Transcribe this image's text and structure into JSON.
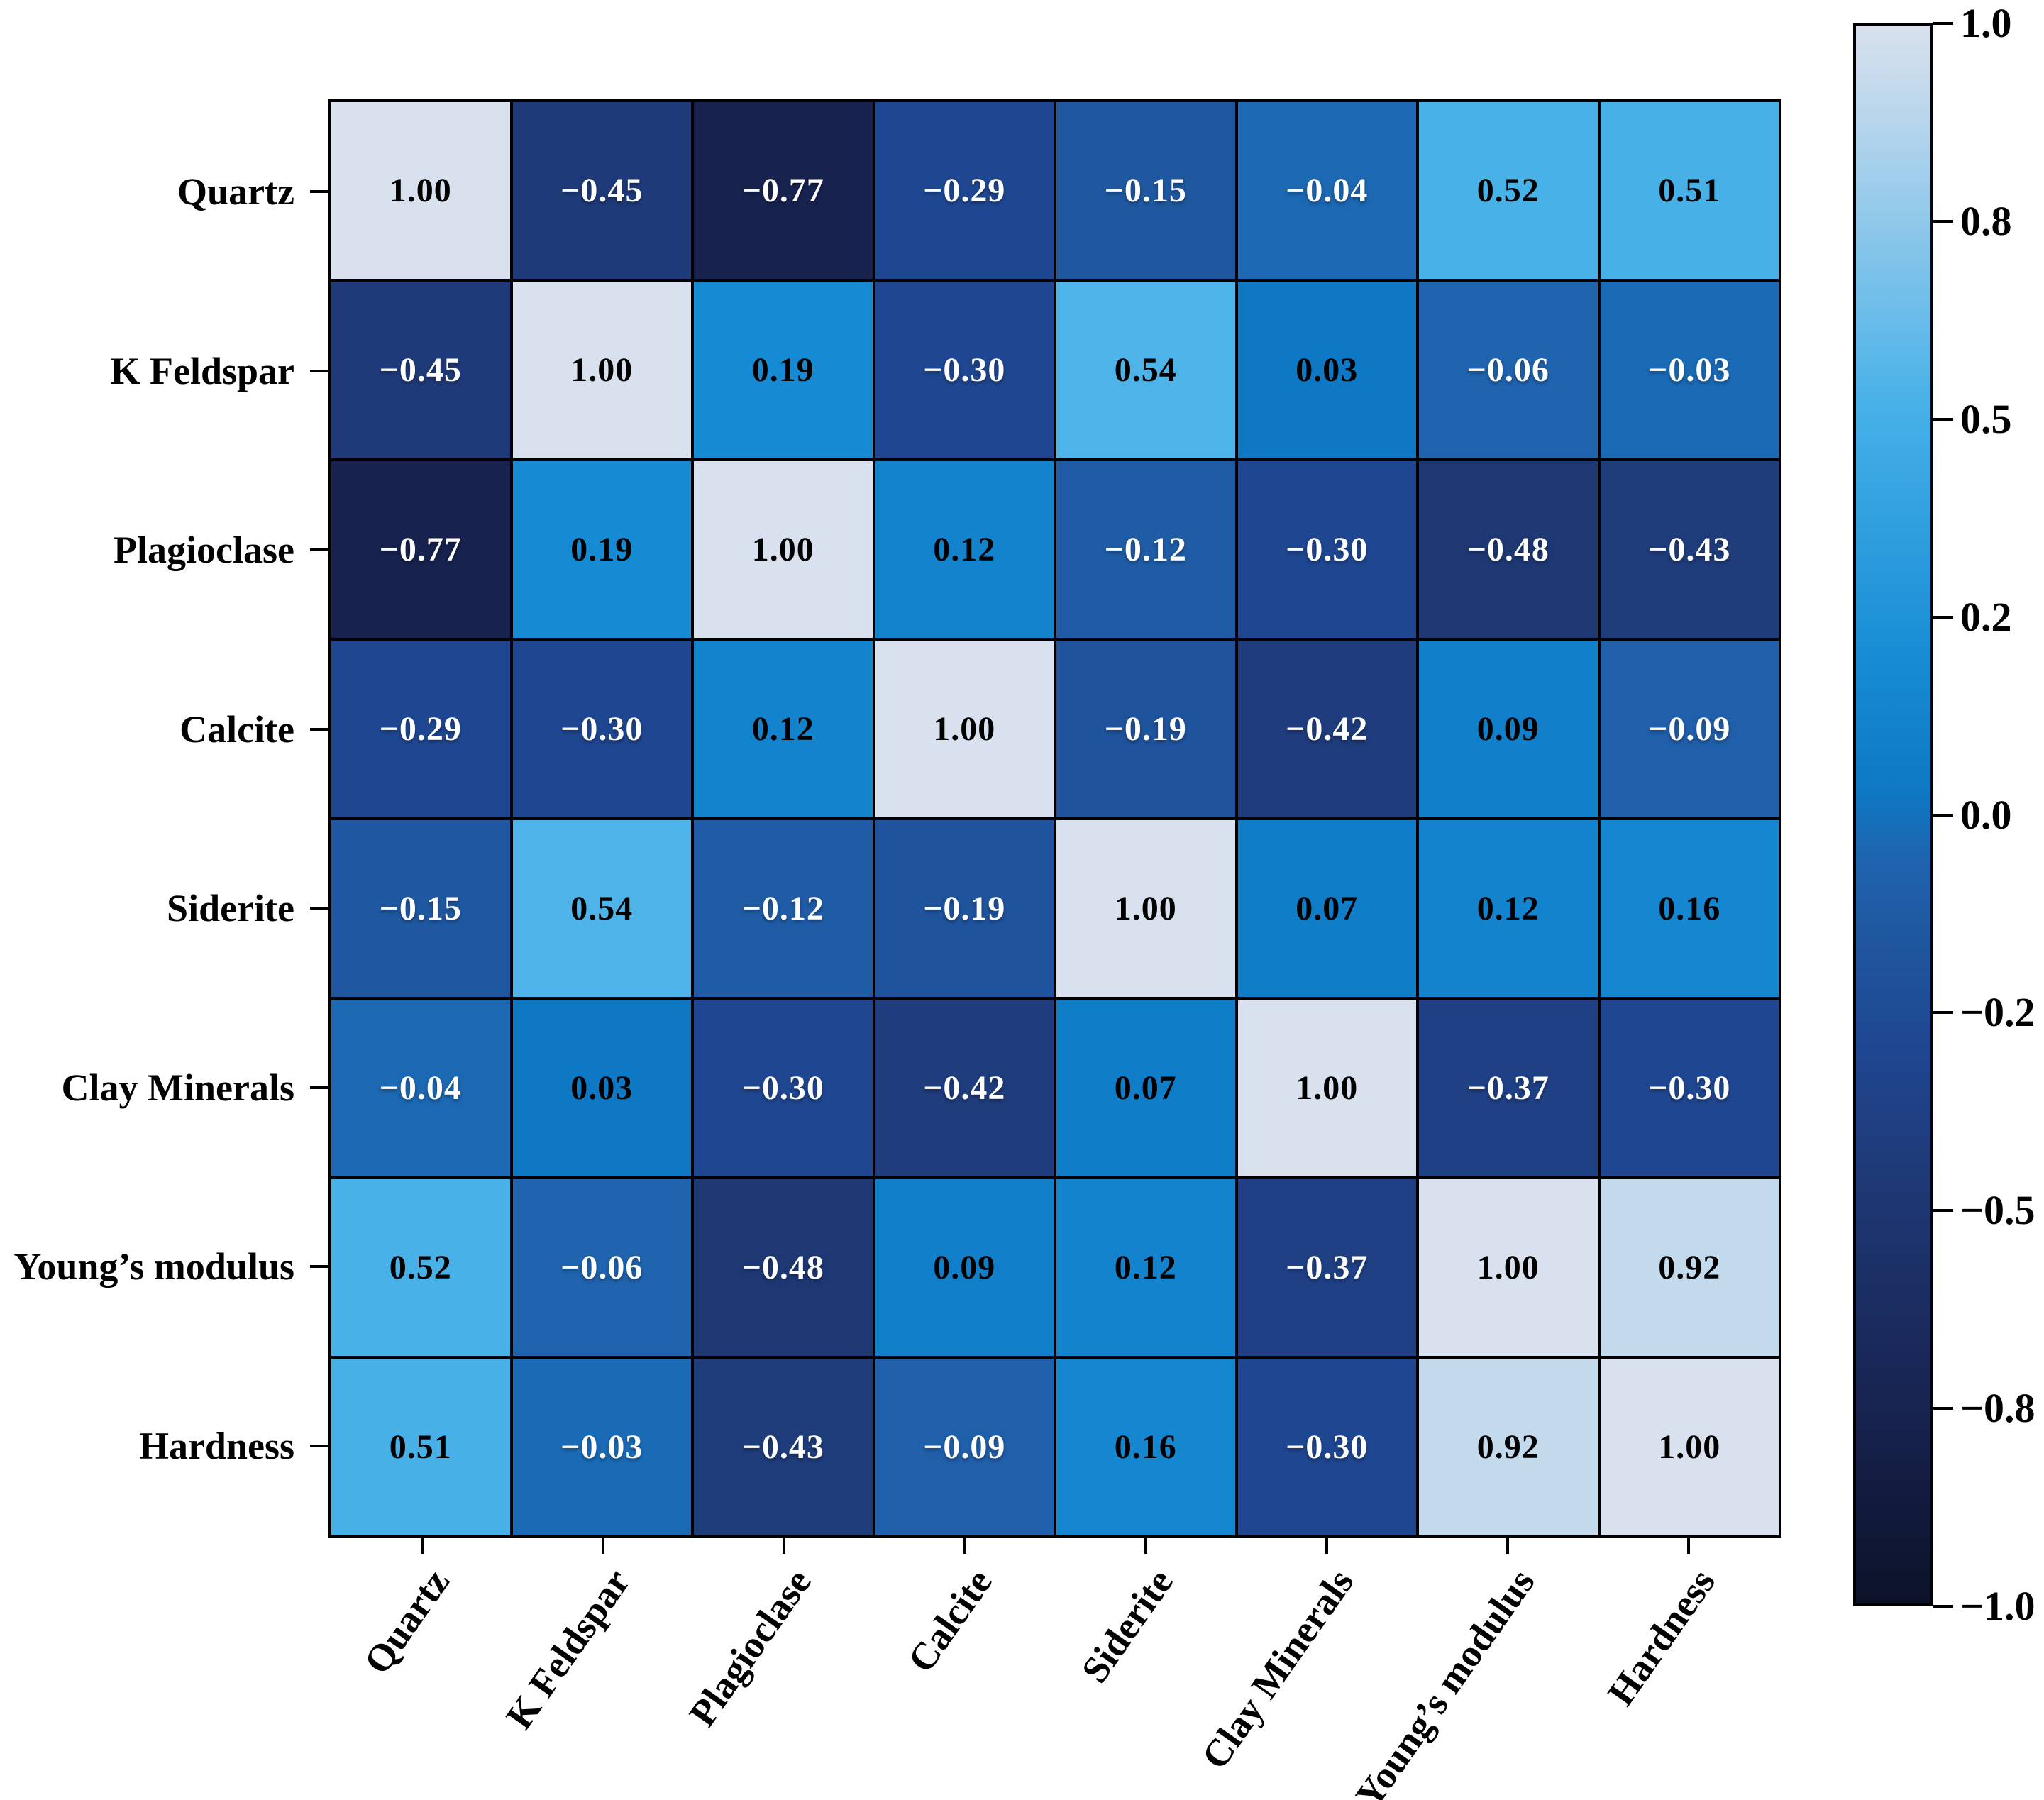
{
  "figure": {
    "background": "#ffffff",
    "grid_line_color": "#000000"
  },
  "chart_data": {
    "type": "heatmap",
    "title": "",
    "categories": [
      "Quartz",
      "K Feldspar",
      "Plagioclase",
      "Calcite",
      "Siderite",
      "Clay Minerals",
      "Young’s modulus",
      "Hardness"
    ],
    "matrix": [
      [
        1.0,
        -0.45,
        -0.77,
        -0.29,
        -0.15,
        -0.04,
        0.52,
        0.51
      ],
      [
        -0.45,
        1.0,
        0.19,
        -0.3,
        0.54,
        0.03,
        -0.06,
        -0.03
      ],
      [
        -0.77,
        0.19,
        1.0,
        0.12,
        -0.12,
        -0.3,
        -0.48,
        -0.43
      ],
      [
        -0.29,
        -0.3,
        0.12,
        1.0,
        -0.19,
        -0.42,
        0.09,
        -0.09
      ],
      [
        -0.15,
        0.54,
        -0.12,
        -0.19,
        1.0,
        0.07,
        0.12,
        0.16
      ],
      [
        -0.04,
        0.03,
        -0.3,
        -0.42,
        0.07,
        1.0,
        -0.37,
        -0.3
      ],
      [
        0.52,
        -0.06,
        -0.48,
        0.09,
        0.12,
        -0.37,
        1.0,
        0.92
      ],
      [
        0.51,
        -0.03,
        -0.43,
        -0.09,
        0.16,
        -0.3,
        0.92,
        1.0
      ]
    ],
    "value_decimals": 2,
    "cell_text_color_positive": "#000000",
    "cell_text_color_negative": "#ffffff",
    "x_tick_rotation_deg": 55,
    "legend_position": "right",
    "grid_on": true,
    "colorbar": {
      "min": -1.0,
      "max": 1.0,
      "tick_labels": [
        "1.0",
        "0.8",
        "0.5",
        "0.2",
        "0.0",
        "−0.2",
        "−0.5",
        "−0.8",
        "−1.0"
      ]
    },
    "colormap_stops": [
      {
        "value": -1.0,
        "color": "#0b1228"
      },
      {
        "value": -0.77,
        "color": "#17224e"
      },
      {
        "value": -0.45,
        "color": "#1f3a78"
      },
      {
        "value": -0.3,
        "color": "#1f4690"
      },
      {
        "value": -0.15,
        "color": "#1f58a0"
      },
      {
        "value": -0.06,
        "color": "#2063ae"
      },
      {
        "value": 0.03,
        "color": "#0e78c4"
      },
      {
        "value": 0.19,
        "color": "#168bd4"
      },
      {
        "value": 0.52,
        "color": "#47b1e8"
      },
      {
        "value": 0.92,
        "color": "#c3d9ec"
      },
      {
        "value": 1.0,
        "color": "#d8e1ed"
      }
    ]
  }
}
